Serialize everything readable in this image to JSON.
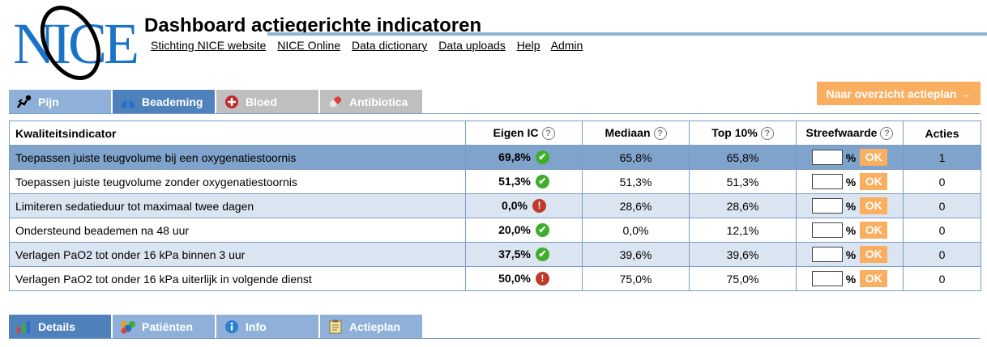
{
  "header": {
    "logo_text": "NICE",
    "title": "Dashboard actiegerichte indicatoren",
    "links": [
      "Stichting NICE website",
      "NICE Online",
      "Data dictionary",
      "Data uploads",
      "Help",
      "Admin"
    ]
  },
  "category_tabs": [
    {
      "label": "Pijn",
      "icon": "pain-figure-icon",
      "state": "inactive"
    },
    {
      "label": "Beademing",
      "icon": "lungs-icon",
      "state": "active"
    },
    {
      "label": "Bloed",
      "icon": "blood-drop-icon",
      "state": "disabled"
    },
    {
      "label": "Antibiotica",
      "icon": "pill-icon",
      "state": "disabled"
    }
  ],
  "action_button": "Naar overzicht actieplan →",
  "table": {
    "headers": {
      "indicator": "Kwaliteitsindicator",
      "eigen": "Eigen IC",
      "mediaan": "Mediaan",
      "top": "Top 10%",
      "streef": "Streefwaarde",
      "acties": "Acties"
    },
    "percent_sign": "%",
    "ok_label": "OK",
    "rows": [
      {
        "name": "Toepassen juiste teugvolume bij een oxygenatiestoornis",
        "eigen": "69,8%",
        "status": "ok",
        "mediaan": "65,8%",
        "top": "65,8%",
        "acties": "1"
      },
      {
        "name": "Toepassen juiste teugvolume zonder oxygenatiestoornis",
        "eigen": "51,3%",
        "status": "ok",
        "mediaan": "51,3%",
        "top": "51,3%",
        "acties": "0"
      },
      {
        "name": "Limiteren sedatieduur tot maximaal twee dagen",
        "eigen": "0,0%",
        "status": "bad",
        "mediaan": "28,6%",
        "top": "28,6%",
        "acties": "0"
      },
      {
        "name": "Ondersteund beademen na 48 uur",
        "eigen": "20,0%",
        "status": "ok",
        "mediaan": "0,0%",
        "top": "12,1%",
        "acties": "0"
      },
      {
        "name": "Verlagen PaO2 tot onder 16 kPa binnen 3 uur",
        "eigen": "37,5%",
        "status": "ok",
        "mediaan": "39,6%",
        "top": "39,6%",
        "acties": "0"
      },
      {
        "name": "Verlagen PaO2 tot onder 16 kPa uiterlijk in volgende dienst",
        "eigen": "50,0%",
        "status": "bad",
        "mediaan": "75,0%",
        "top": "75,0%",
        "acties": "0"
      }
    ]
  },
  "detail_tabs": [
    {
      "label": "Details",
      "icon": "bar-chart-icon",
      "state": "active"
    },
    {
      "label": "Patiënten",
      "icon": "patients-icon",
      "state": "inactive"
    },
    {
      "label": "Info",
      "icon": "info-icon",
      "state": "inactive"
    },
    {
      "label": "Actieplan",
      "icon": "clipboard-icon",
      "state": "inactive"
    }
  ],
  "colors": {
    "tab_active": "#4f81bd",
    "tab_inactive": "#8fb1d9",
    "tab_disabled": "#bfbfbf",
    "row_selected": "#7fa3cb",
    "row_alt": "#dbe5f1",
    "accent_orange": "#f9ae60",
    "status_ok": "#3fae2a",
    "status_bad": "#c0392b"
  }
}
